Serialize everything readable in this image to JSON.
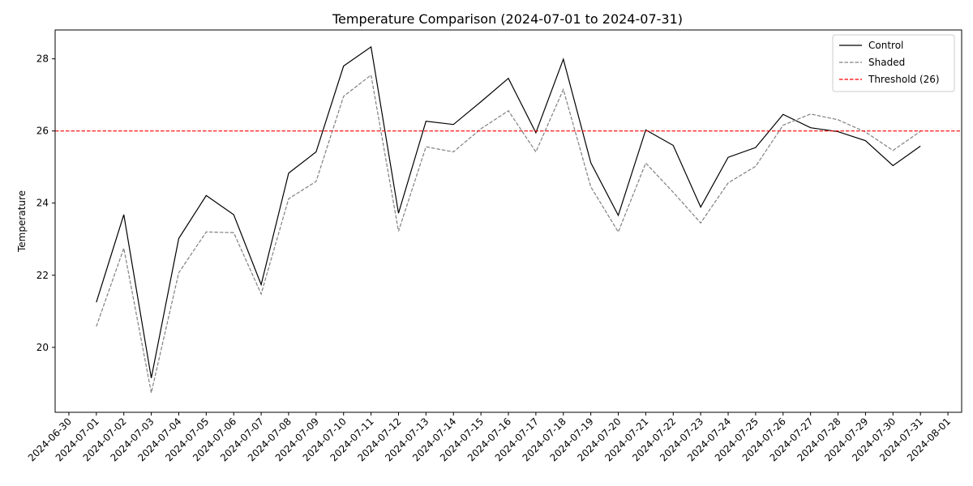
{
  "chart_data": {
    "type": "line",
    "title": "Temperature Comparison (2024-07-01 to 2024-07-31)",
    "xlabel": "",
    "ylabel": "Temperature",
    "x_ticks": [
      "2024-06-30",
      "2024-07-01",
      "2024-07-02",
      "2024-07-03",
      "2024-07-04",
      "2024-07-05",
      "2024-07-06",
      "2024-07-07",
      "2024-07-08",
      "2024-07-09",
      "2024-07-10",
      "2024-07-11",
      "2024-07-12",
      "2024-07-13",
      "2024-07-14",
      "2024-07-15",
      "2024-07-16",
      "2024-07-17",
      "2024-07-18",
      "2024-07-19",
      "2024-07-20",
      "2024-07-21",
      "2024-07-22",
      "2024-07-23",
      "2024-07-24",
      "2024-07-25",
      "2024-07-26",
      "2024-07-27",
      "2024-07-28",
      "2024-07-29",
      "2024-07-30",
      "2024-07-31",
      "2024-08-01"
    ],
    "x": [
      "2024-07-01",
      "2024-07-02",
      "2024-07-03",
      "2024-07-04",
      "2024-07-05",
      "2024-07-06",
      "2024-07-07",
      "2024-07-08",
      "2024-07-09",
      "2024-07-10",
      "2024-07-11",
      "2024-07-12",
      "2024-07-13",
      "2024-07-14",
      "2024-07-15",
      "2024-07-16",
      "2024-07-17",
      "2024-07-18",
      "2024-07-19",
      "2024-07-20",
      "2024-07-21",
      "2024-07-22",
      "2024-07-23",
      "2024-07-24",
      "2024-07-25",
      "2024-07-26",
      "2024-07-27",
      "2024-07-28",
      "2024-07-29",
      "2024-07-30",
      "2024-07-31"
    ],
    "xlim": [
      "2024-06-30",
      "2024-08-01"
    ],
    "ylim": [
      18.2,
      28.8
    ],
    "y_ticks": [
      20,
      22,
      24,
      26,
      28
    ],
    "grid": false,
    "legend_position": "top-right",
    "series": [
      {
        "name": "Control",
        "color": "#000000",
        "style": "solid",
        "values": [
          21.25,
          23.68,
          19.15,
          23.02,
          24.21,
          23.68,
          21.74,
          24.83,
          25.42,
          27.8,
          28.33,
          23.72,
          26.27,
          26.18,
          26.81,
          27.46,
          25.95,
          27.99,
          25.12,
          23.66,
          26.03,
          25.6,
          23.89,
          25.27,
          25.54,
          26.46,
          26.09,
          25.98,
          25.73,
          25.04,
          25.58
        ]
      },
      {
        "name": "Shaded",
        "color": "#808080",
        "style": "dashed",
        "values": [
          20.58,
          22.75,
          18.74,
          22.07,
          23.2,
          23.18,
          21.48,
          24.12,
          24.6,
          26.96,
          27.55,
          23.22,
          25.56,
          25.42,
          26.06,
          26.56,
          25.42,
          27.15,
          24.45,
          23.2,
          25.11,
          24.3,
          23.45,
          24.56,
          25.02,
          26.16,
          26.47,
          26.31,
          25.97,
          25.46,
          25.99
        ]
      }
    ],
    "reference_lines": [
      {
        "name": "Threshold (26)",
        "y": 26,
        "color": "#ff0000",
        "style": "dashed"
      }
    ]
  }
}
